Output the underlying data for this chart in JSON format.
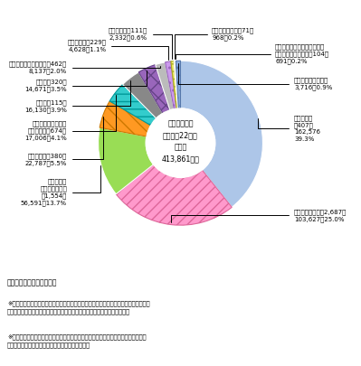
{
  "center_text": "情報通信業に\n係る平成22年度\n売上高\n413,861億円",
  "unit_note": "（　）は社数、単位：億円",
  "footnote1": "※　「当該業種売上高」とは当該アクティビティに係る売上高をいう（例えば電気通信\n　　業では、会社全体の売上高のうち電気通信業に係る売上高をいう。）。",
  "footnote2": "※　「その他の情報通信業」とは、情報通信業に係る売上高内訳において、主要事業\n　　名「その他」として回答のあったものをいう。",
  "slices": [
    {
      "name": "電気通信業\n（407）\n162,576\n39.3%",
      "value": 162576,
      "color": "#adc6e8",
      "hatch": null,
      "ec": "white"
    },
    {
      "name": "ソフトウェア業（2,687）\n103,627　25.0%",
      "value": 103627,
      "color": "#ff99cc",
      "hatch": "///",
      "ec": "#dd6699"
    },
    {
      "name": "情報処理・\n提供サービス業\n（1,554）\n56,591　13.7%",
      "value": 56591,
      "color": "#99dd55",
      "hatch": null,
      "ec": "white"
    },
    {
      "name": "民間放送業（380）\n22,787　5.5%",
      "value": 22787,
      "color": "#ff9922",
      "hatch": "\\\\",
      "ec": "#cc7700"
    },
    {
      "name": "インターネット附随\nサービス業（674）\n17,006　4.1%",
      "value": 17006,
      "color": "#33cccc",
      "hatch": "--",
      "ec": "#009999"
    },
    {
      "name": "新聞業（115）\n16,130　3.9%",
      "value": 16130,
      "color": "#888888",
      "hatch": null,
      "ec": "white"
    },
    {
      "name": "出版業（320）\n14,671　3.5%",
      "value": 14671,
      "color": "#9966bb",
      "hatch": "xx",
      "ec": "#664488"
    },
    {
      "name": "映像情報制作・配給業（462）\n8,137　2.0%",
      "value": 8137,
      "color": "#bbbbbb",
      "hatch": null,
      "ec": "white"
    },
    {
      "name": "有線放送業（229）\n4,628　1.1%",
      "value": 4628,
      "color": "#cc99ee",
      "hatch": "..",
      "ec": "#9966bb"
    },
    {
      "name": "広告制作業（111）\n2,332　0.6%",
      "value": 2332,
      "color": "#eeee66",
      "hatch": "--",
      "ec": "#aaaa22"
    },
    {
      "name": "音声情報制作業（71）\n968　0.2%",
      "value": 968,
      "color": "#33aa33",
      "hatch": null,
      "ec": "white"
    },
    {
      "name": "映像・音声・文字情報制作に\n附帯するサービス業（104）\n691　0.2%",
      "value": 691,
      "color": "#ee5544",
      "hatch": null,
      "ec": "white"
    },
    {
      "name": "その他の情報通信業\n3,716　0.9%",
      "value": 3716,
      "color": "#88aadd",
      "hatch": "..",
      "ec": "#5577aa"
    }
  ]
}
